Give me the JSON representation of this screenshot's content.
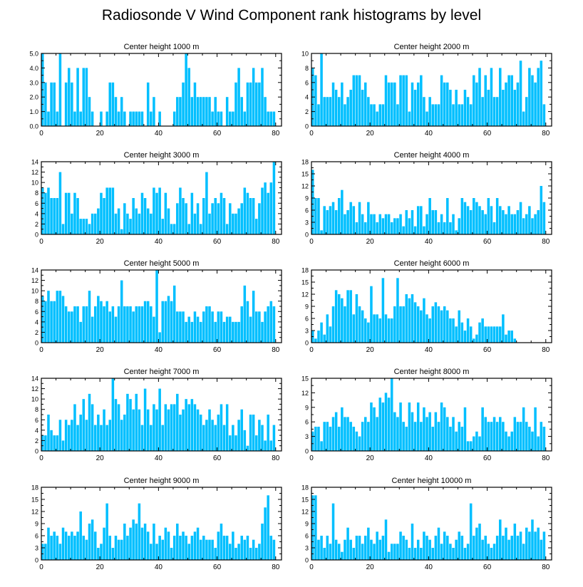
{
  "title": "Radiosonde V Wind Component rank histograms by level",
  "bar_color": "#00bfff",
  "chart_data": [
    {
      "type": "bar",
      "title": "Center height 1000 m",
      "xlim": [
        0,
        82
      ],
      "ylim": [
        0,
        5
      ],
      "xticks": [
        "0",
        "20",
        "40",
        "60",
        "80"
      ],
      "yticks": [
        "0.0",
        "1.0",
        "2.0",
        "3.0",
        "4.0",
        "5.0"
      ],
      "values": [
        5,
        3,
        1,
        3,
        3,
        1,
        5,
        0,
        3,
        4,
        3,
        1,
        4,
        1,
        4,
        4,
        2,
        1,
        0,
        0,
        1,
        0,
        1,
        3,
        3,
        2,
        1,
        2,
        1,
        0,
        1,
        1,
        1,
        1,
        1,
        0,
        3,
        1,
        2,
        0,
        1,
        0,
        0,
        0,
        0,
        1,
        2,
        2,
        3,
        5,
        4,
        2,
        3,
        2,
        2,
        2,
        2,
        2,
        1,
        2,
        1,
        1,
        0,
        2,
        1,
        1,
        3,
        4,
        2,
        1,
        3,
        3,
        4,
        3,
        3,
        4,
        2,
        1,
        1,
        1
      ]
    },
    {
      "type": "bar",
      "title": "Center height 2000 m",
      "xlim": [
        0,
        82
      ],
      "ylim": [
        0,
        10
      ],
      "xticks": [
        "0",
        "20",
        "40",
        "60",
        "80"
      ],
      "yticks": [
        "0",
        "2",
        "4",
        "6",
        "8",
        "10"
      ],
      "values": [
        8,
        7,
        3,
        10,
        4,
        4,
        4,
        6,
        5,
        4,
        6,
        3,
        4,
        5,
        7,
        7,
        7,
        5,
        6,
        4,
        3,
        3,
        2,
        3,
        3,
        7,
        6,
        6,
        6,
        3,
        7,
        7,
        7,
        2,
        6,
        5,
        6,
        7,
        4,
        2,
        4,
        3,
        3,
        3,
        7,
        6,
        6,
        5,
        3,
        5,
        3,
        3,
        5,
        4,
        3,
        7,
        6,
        8,
        4,
        7,
        5,
        8,
        4,
        4,
        8,
        5,
        6,
        7,
        7,
        5,
        6,
        9,
        2,
        4,
        8,
        7,
        6,
        8,
        9,
        3
      ]
    },
    {
      "type": "bar",
      "title": "Center height 3000 m",
      "xlim": [
        0,
        82
      ],
      "ylim": [
        0,
        14
      ],
      "xticks": [
        "0",
        "20",
        "40",
        "60",
        "80"
      ],
      "yticks": [
        "0",
        "2",
        "4",
        "6",
        "8",
        "10",
        "12",
        "14"
      ],
      "values": [
        9,
        8,
        9,
        7,
        7,
        7,
        12,
        2,
        8,
        8,
        4,
        8,
        7,
        3,
        3,
        3,
        2,
        4,
        4,
        5,
        8,
        7,
        9,
        9,
        9,
        4,
        5,
        1,
        6,
        4,
        3,
        7,
        5,
        4,
        8,
        7,
        5,
        4,
        9,
        8,
        9,
        3,
        8,
        5,
        2,
        2,
        6,
        9,
        7,
        6,
        2,
        8,
        4,
        6,
        2,
        7,
        12,
        4,
        6,
        7,
        6,
        8,
        7,
        2,
        6,
        4,
        4,
        5,
        6,
        9,
        8,
        7,
        7,
        3,
        6,
        9,
        10,
        8,
        10,
        14
      ]
    },
    {
      "type": "bar",
      "title": "Center height 4000 m",
      "xlim": [
        0,
        82
      ],
      "ylim": [
        0,
        18
      ],
      "xticks": [
        "0",
        "20",
        "40",
        "60",
        "80"
      ],
      "yticks": [
        "0",
        "3",
        "6",
        "9",
        "12",
        "15",
        "18"
      ],
      "values": [
        16,
        9,
        9,
        1,
        7,
        6,
        7,
        8,
        6,
        9,
        11,
        5,
        6,
        8,
        7,
        3,
        8,
        5,
        3,
        8,
        5,
        5,
        3,
        5,
        4,
        5,
        5,
        3,
        4,
        4,
        5,
        2,
        6,
        4,
        6,
        2,
        7,
        7,
        2,
        5,
        9,
        6,
        6,
        3,
        5,
        3,
        9,
        3,
        5,
        1,
        4,
        9,
        8,
        7,
        6,
        9,
        8,
        7,
        6,
        5,
        9,
        7,
        3,
        9,
        7,
        6,
        5,
        7,
        5,
        5,
        6,
        8,
        4,
        5,
        7,
        4,
        5,
        6,
        12,
        8
      ]
    },
    {
      "type": "bar",
      "title": "Center height 5000 m",
      "xlim": [
        0,
        82
      ],
      "ylim": [
        0,
        14
      ],
      "xticks": [
        "0",
        "20",
        "40",
        "60",
        "80"
      ],
      "yticks": [
        "0",
        "2",
        "4",
        "6",
        "8",
        "10",
        "12",
        "14"
      ],
      "values": [
        9,
        8,
        10,
        8,
        8,
        10,
        10,
        9,
        7,
        6,
        6,
        7,
        7,
        4,
        7,
        7,
        10,
        5,
        7,
        9,
        8,
        7,
        8,
        6,
        7,
        5,
        7,
        12,
        7,
        7,
        7,
        6,
        7,
        7,
        7,
        8,
        8,
        7,
        5,
        14,
        2,
        8,
        8,
        9,
        8,
        11,
        6,
        6,
        6,
        4,
        5,
        4,
        6,
        5,
        4,
        6,
        7,
        7,
        6,
        4,
        6,
        6,
        4,
        5,
        5,
        4,
        4,
        4,
        7,
        11,
        8,
        5,
        10,
        6,
        6,
        4,
        6,
        7,
        8,
        7
      ]
    },
    {
      "type": "bar",
      "title": "Center height 6000 m",
      "xlim": [
        0,
        82
      ],
      "ylim": [
        0,
        18
      ],
      "xticks": [
        "0",
        "20",
        "40",
        "60",
        "80"
      ],
      "yticks": [
        "0",
        "3",
        "6",
        "9",
        "12",
        "15",
        "18"
      ],
      "values": [
        3,
        1,
        3,
        5,
        2,
        7,
        4,
        9,
        13,
        12,
        11,
        9,
        13,
        13,
        7,
        12,
        9,
        8,
        6,
        5,
        14,
        7,
        7,
        6,
        16,
        7,
        6,
        6,
        9,
        16,
        9,
        9,
        12,
        11,
        12,
        10,
        9,
        8,
        11,
        7,
        6,
        9,
        10,
        9,
        8,
        9,
        8,
        6,
        6,
        4,
        8,
        5,
        3,
        6,
        4,
        1,
        2,
        5,
        6,
        4,
        4,
        4,
        4,
        4,
        4,
        7,
        2,
        3,
        3,
        1
      ]
    },
    {
      "type": "bar",
      "title": "Center height 7000 m",
      "xlim": [
        0,
        82
      ],
      "ylim": [
        0,
        14
      ],
      "xticks": [
        "0",
        "20",
        "40",
        "60",
        "80"
      ],
      "yticks": [
        "0",
        "2",
        "4",
        "6",
        "8",
        "10",
        "12",
        "14"
      ],
      "values": [
        3,
        3,
        7,
        4,
        3,
        3,
        6,
        2,
        6,
        5,
        6,
        9,
        5,
        7,
        10,
        6,
        11,
        9,
        5,
        7,
        5,
        8,
        5,
        6,
        14,
        10,
        9,
        6,
        7,
        11,
        10,
        8,
        11,
        8,
        5,
        12,
        8,
        5,
        9,
        8,
        12,
        5,
        9,
        8,
        9,
        9,
        11,
        7,
        8,
        10,
        9,
        10,
        9,
        8,
        7,
        5,
        6,
        8,
        6,
        5,
        7,
        9,
        5,
        9,
        3,
        5,
        3,
        6,
        8,
        4,
        1,
        7,
        7,
        3,
        6,
        5,
        2,
        7,
        2,
        5
      ]
    },
    {
      "type": "bar",
      "title": "Center height 8000 m",
      "xlim": [
        0,
        82
      ],
      "ylim": [
        0,
        15
      ],
      "xticks": [
        "0",
        "20",
        "40",
        "60",
        "80"
      ],
      "yticks": [
        "0",
        "3",
        "6",
        "9",
        "12",
        "15"
      ],
      "values": [
        4,
        5,
        5,
        2,
        6,
        6,
        5,
        7,
        8,
        5,
        9,
        7,
        7,
        6,
        5,
        4,
        3,
        6,
        7,
        6,
        10,
        9,
        7,
        11,
        10,
        12,
        11,
        15,
        8,
        7,
        10,
        6,
        5,
        10,
        8,
        6,
        10,
        6,
        9,
        7,
        8,
        5,
        8,
        6,
        10,
        9,
        7,
        5,
        7,
        4,
        6,
        5,
        9,
        2,
        2,
        3,
        4,
        3,
        9,
        7,
        6,
        6,
        7,
        6,
        7,
        6,
        4,
        3,
        4,
        7,
        6,
        6,
        9,
        6,
        5,
        4,
        9,
        3,
        6,
        5
      ]
    },
    {
      "type": "bar",
      "title": "Center height 9000 m",
      "xlim": [
        0,
        82
      ],
      "ylim": [
        0,
        18
      ],
      "xticks": [
        "0",
        "20",
        "40",
        "60",
        "80"
      ],
      "yticks": [
        "0",
        "3",
        "6",
        "9",
        "12",
        "15",
        "18"
      ],
      "values": [
        4,
        4,
        8,
        6,
        7,
        6,
        4,
        8,
        7,
        6,
        7,
        6,
        7,
        12,
        6,
        5,
        9,
        10,
        7,
        3,
        4,
        8,
        14,
        6,
        3,
        6,
        5,
        5,
        9,
        6,
        8,
        10,
        9,
        14,
        8,
        9,
        7,
        4,
        9,
        4,
        6,
        5,
        8,
        7,
        3,
        6,
        9,
        6,
        7,
        6,
        4,
        6,
        7,
        8,
        5,
        6,
        5,
        5,
        5,
        3,
        7,
        9,
        6,
        6,
        4,
        7,
        3,
        4,
        6,
        5,
        6,
        3,
        5,
        3,
        4,
        9,
        13,
        16,
        6,
        5
      ]
    },
    {
      "type": "bar",
      "title": "Center height 10000 m",
      "xlim": [
        0,
        82
      ],
      "ylim": [
        0,
        18
      ],
      "xticks": [
        "0",
        "20",
        "40",
        "60",
        "80"
      ],
      "yticks": [
        "0",
        "3",
        "6",
        "9",
        "12",
        "15",
        "18"
      ],
      "values": [
        16,
        16,
        5,
        6,
        3,
        6,
        4,
        14,
        5,
        4,
        2,
        5,
        8,
        5,
        3,
        6,
        6,
        4,
        6,
        8,
        5,
        4,
        7,
        5,
        6,
        10,
        2,
        4,
        4,
        4,
        7,
        6,
        5,
        3,
        9,
        3,
        5,
        3,
        7,
        6,
        5,
        3,
        6,
        8,
        4,
        7,
        6,
        4,
        3,
        5,
        7,
        6,
        3,
        4,
        14,
        6,
        8,
        9,
        5,
        6,
        4,
        3,
        4,
        6,
        10,
        6,
        8,
        5,
        6,
        9,
        6,
        7,
        4,
        8,
        7,
        10,
        7,
        8,
        5,
        7
      ]
    }
  ]
}
